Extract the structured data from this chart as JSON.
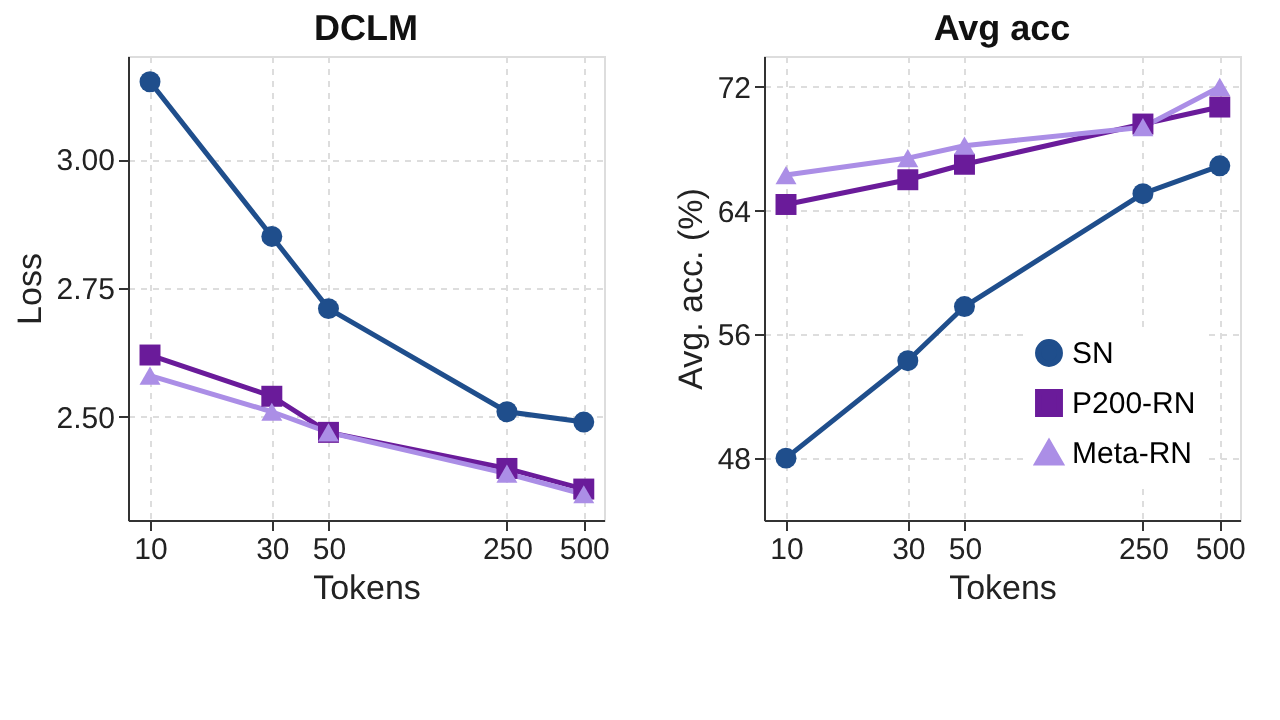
{
  "chart_data": [
    {
      "type": "line",
      "title": "DCLM",
      "xlabel": "Tokens",
      "ylabel": "Loss",
      "log": "x",
      "grid": true,
      "legend": false,
      "line_style": "solid",
      "x": [
        10,
        30,
        50,
        250,
        500
      ],
      "xlim": [
        8.2,
        600
      ],
      "xticks": [
        10,
        30,
        50,
        250,
        500
      ],
      "ylim": [
        2.3,
        3.2
      ],
      "yticks": [
        {
          "value": 2.5,
          "label": "2.50"
        },
        {
          "value": 2.75,
          "label": "2.75"
        },
        {
          "value": 3.0,
          "label": "3.00"
        }
      ],
      "series": [
        {
          "color": "#1f4e8c",
          "marker": "circle",
          "values": [
            3.15,
            2.85,
            2.71,
            2.51,
            2.49
          ]
        },
        {
          "color": "#6a1b9a",
          "marker": "square",
          "values": [
            2.62,
            2.54,
            2.47,
            2.4,
            2.36
          ]
        },
        {
          "color": "#ab8ee6",
          "marker": "triangle",
          "values": [
            2.58,
            2.51,
            2.47,
            2.39,
            2.35
          ]
        }
      ]
    },
    {
      "type": "line",
      "title": "Avg acc",
      "xlabel": "Tokens",
      "ylabel": "Avg. acc. (%)",
      "log": "x",
      "grid": true,
      "legend": "bottom right",
      "line_style": "solid",
      "x": [
        10,
        30,
        50,
        250,
        500
      ],
      "xlim": [
        8.2,
        600
      ],
      "xticks": [
        10,
        30,
        50,
        250,
        500
      ],
      "ylim": [
        44,
        74
      ],
      "yticks": [
        48,
        56,
        64,
        72
      ],
      "series": [
        {
          "name": "SN",
          "color": "#1f4e8c",
          "marker": "circle",
          "values": [
            48.0,
            54.3,
            57.8,
            65.1,
            66.9
          ]
        },
        {
          "name": "P200-RN",
          "color": "#6a1b9a",
          "marker": "square",
          "values": [
            64.4,
            66.0,
            67.0,
            69.6,
            70.7
          ]
        },
        {
          "name": "Meta-RN",
          "color": "#ab8ee6",
          "marker": "triangle",
          "values": [
            66.3,
            67.4,
            68.2,
            69.4,
            72.0
          ]
        }
      ]
    }
  ]
}
